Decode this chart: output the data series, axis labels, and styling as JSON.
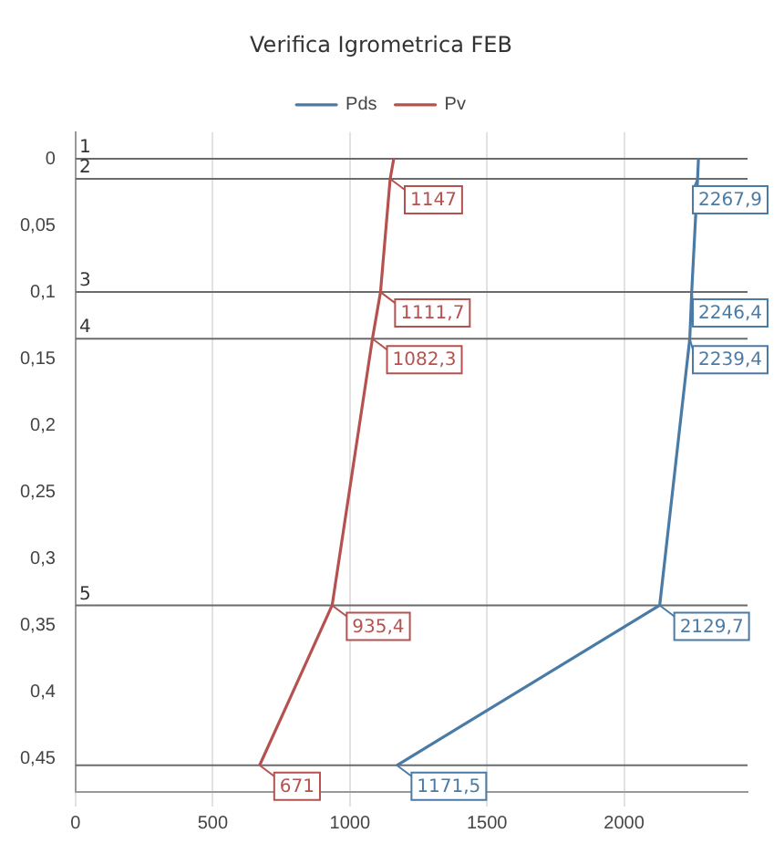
{
  "chart_data": {
    "type": "line",
    "title": "Verifica Igrometrica FEB",
    "series": [
      {
        "name": "Pds",
        "color": "#4a7ba6",
        "x": [
          2271,
          2267.9,
          2246.4,
          2239.4,
          2129.7,
          1171.5
        ],
        "values": [
          0,
          0.015,
          0.1,
          0.135,
          0.335,
          0.455
        ]
      },
      {
        "name": "Pv",
        "color": "#b5524f",
        "x": [
          1160,
          1147,
          1111.7,
          1082.3,
          935.4,
          671
        ],
        "values": [
          0,
          0.015,
          0.1,
          0.135,
          0.335,
          0.455
        ]
      }
    ],
    "annotations": [
      {
        "text": "2267,9",
        "x": 2267.9,
        "y": 0.015
      },
      {
        "text": "2246,4",
        "x": 2246.4,
        "y": 0.1
      },
      {
        "text": "2239,4",
        "x": 2239.4,
        "y": 0.135
      },
      {
        "text": "2129,7",
        "x": 2129.7,
        "y": 0.335
      },
      {
        "text": "1171,5",
        "x": 1171.5,
        "y": 0.455
      },
      {
        "text": "1147",
        "x": 1147,
        "y": 0.015
      },
      {
        "text": "1111,7",
        "x": 1111.7,
        "y": 0.1
      },
      {
        "text": "1082,3",
        "x": 1082.3,
        "y": 0.135
      },
      {
        "text": "935,4",
        "x": 935.4,
        "y": 0.335
      },
      {
        "text": "671",
        "x": 671,
        "y": 0.455
      },
      {
        "text": "1",
        "x": 0,
        "y": 0
      },
      {
        "text": "2",
        "x": 0,
        "y": 0.015
      },
      {
        "text": "3",
        "x": 0,
        "y": 0.1
      },
      {
        "text": "4",
        "x": 0,
        "y": 0.135
      },
      {
        "text": "5",
        "x": 0,
        "y": 0.335
      }
    ],
    "xlim": [
      0,
      2450
    ],
    "xticks": [
      0,
      500,
      1000,
      1500,
      2000
    ],
    "ylim": [
      0.475,
      -0.02
    ],
    "yticks": [
      {
        "value": 0,
        "label": "0"
      },
      {
        "value": 0.05,
        "label": "0,05"
      },
      {
        "value": 0.1,
        "label": "0,1"
      },
      {
        "value": 0.15,
        "label": "0,15"
      },
      {
        "value": 0.2,
        "label": "0,2"
      },
      {
        "value": 0.25,
        "label": "0,25"
      },
      {
        "value": 0.3,
        "label": "0,3"
      },
      {
        "value": 0.35,
        "label": "0,35"
      },
      {
        "value": 0.4,
        "label": "0,4"
      },
      {
        "value": 0.45,
        "label": "0,45"
      }
    ],
    "ref_lines": [
      {
        "axis": "y",
        "value": 0
      },
      {
        "axis": "y",
        "value": 0.015
      },
      {
        "axis": "y",
        "value": 0.1
      },
      {
        "axis": "y",
        "value": 0.135
      },
      {
        "axis": "y",
        "value": 0.335
      },
      {
        "axis": "y",
        "value": 0.455
      }
    ],
    "grid": "x",
    "legend": "top",
    "marker": "none",
    "line_style": "solid"
  }
}
